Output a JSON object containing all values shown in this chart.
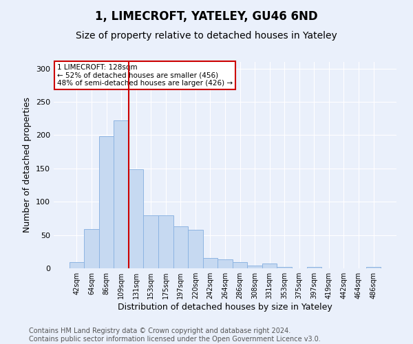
{
  "title1": "1, LIMECROFT, YATELEY, GU46 6ND",
  "title2": "Size of property relative to detached houses in Yateley",
  "xlabel": "Distribution of detached houses by size in Yateley",
  "ylabel": "Number of detached properties",
  "bin_labels": [
    "42sqm",
    "64sqm",
    "86sqm",
    "109sqm",
    "131sqm",
    "153sqm",
    "175sqm",
    "197sqm",
    "220sqm",
    "242sqm",
    "264sqm",
    "286sqm",
    "308sqm",
    "331sqm",
    "353sqm",
    "375sqm",
    "397sqm",
    "419sqm",
    "442sqm",
    "464sqm",
    "486sqm"
  ],
  "bar_values": [
    9,
    59,
    198,
    222,
    149,
    80,
    80,
    63,
    58,
    16,
    13,
    9,
    4,
    7,
    2,
    0,
    2,
    0,
    0,
    0,
    2
  ],
  "bar_color": "#c6d9f1",
  "bar_edge_color": "#8db4e2",
  "vline_color": "#cc0000",
  "annotation_text": "1 LIMECROFT: 128sqm\n← 52% of detached houses are smaller (456)\n48% of semi-detached houses are larger (426) →",
  "annotation_box_color": "white",
  "annotation_box_edge_color": "#cc0000",
  "ylim": [
    0,
    310
  ],
  "yticks": [
    0,
    50,
    100,
    150,
    200,
    250,
    300
  ],
  "background_color": "#eaf0fb",
  "footer_text": "Contains HM Land Registry data © Crown copyright and database right 2024.\nContains public sector information licensed under the Open Government Licence v3.0.",
  "title1_fontsize": 12,
  "title2_fontsize": 10,
  "xlabel_fontsize": 9,
  "ylabel_fontsize": 9,
  "footer_fontsize": 7
}
